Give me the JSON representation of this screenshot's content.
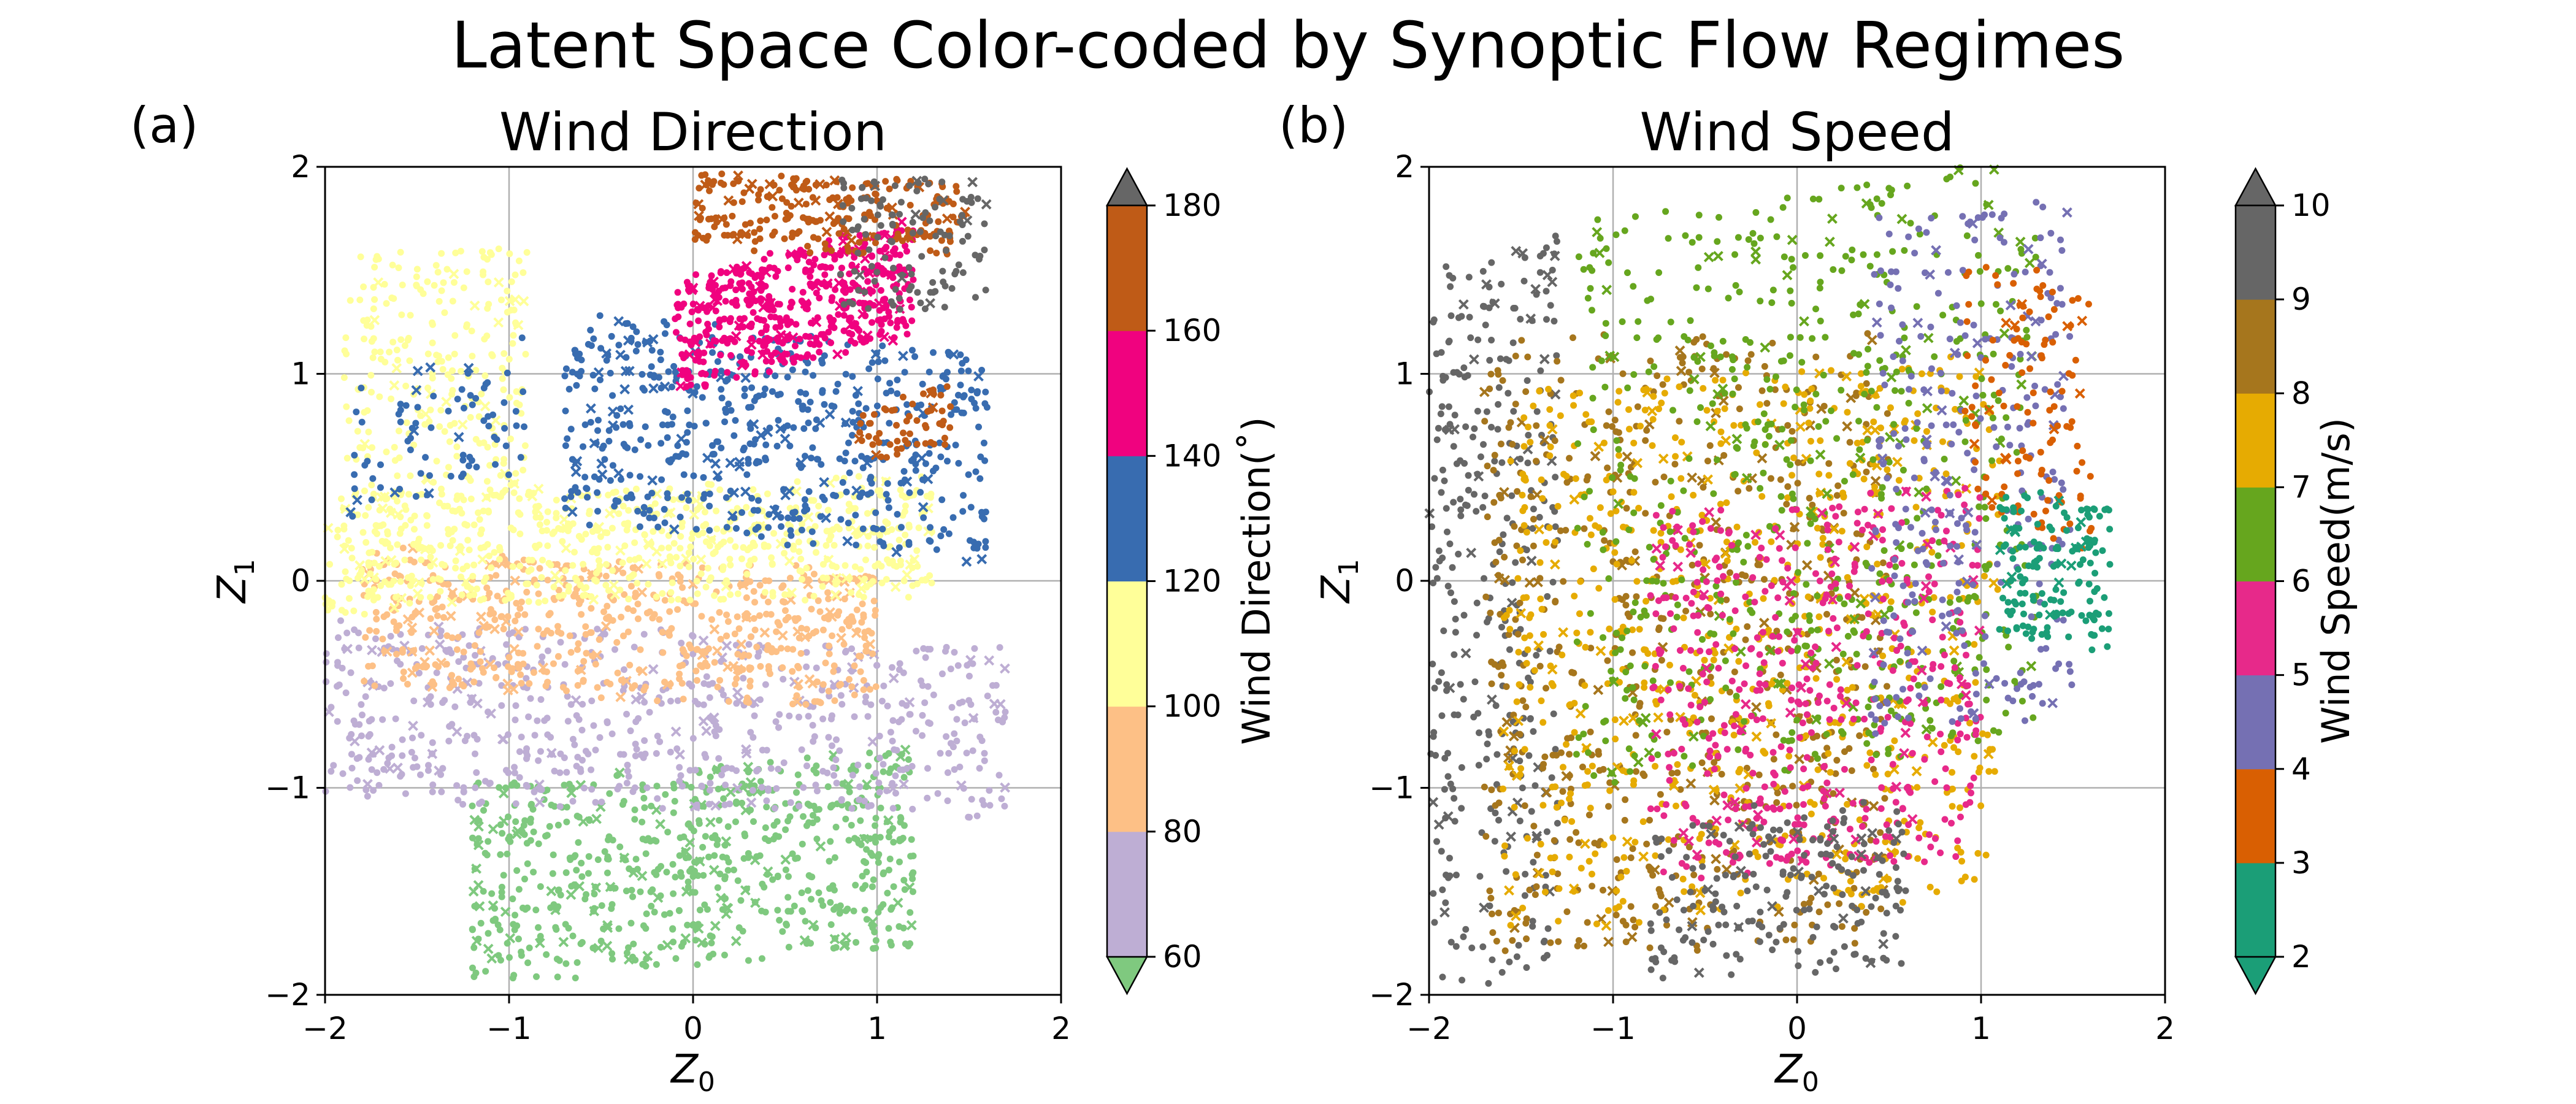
{
  "suptitle": "Latent Space Color-coded by Synoptic Flow Regimes",
  "chart_data": [
    {
      "type": "scatter",
      "panel_label": "(a)",
      "title": "Wind Direction",
      "xlabel": "Z",
      "xlabel_sub": "0",
      "ylabel": "Z",
      "ylabel_sub": "1",
      "xlim": [
        -2,
        2
      ],
      "ylim": [
        -2,
        2
      ],
      "xticks": [
        "−2",
        "−1",
        "0",
        "1",
        "2"
      ],
      "yticks": [
        "−2",
        "−1",
        "0",
        "1",
        "2"
      ],
      "grid": true,
      "colorbar": {
        "label": "Wind Direction(˚)",
        "extend": "both",
        "bounds": [
          60,
          80,
          100,
          120,
          140,
          160,
          180
        ],
        "tick_labels": [
          "60",
          "80",
          "100",
          "120",
          "140",
          "160",
          "180"
        ],
        "colors": [
          "#7fc97f",
          "#beaed4",
          "#fdc086",
          "#ffff99",
          "#386cb0",
          "#f0027f",
          "#bf5b17",
          "#666666"
        ]
      },
      "clusters": [
        {
          "class": 0,
          "x": [
            -1.2,
            1.2
          ],
          "y": [
            -1.85,
            -0.9
          ],
          "n": 700
        },
        {
          "class": 1,
          "x": [
            -2.0,
            1.7
          ],
          "y": [
            -1.1,
            -0.25
          ],
          "n": 650
        },
        {
          "class": 2,
          "x": [
            -1.8,
            1.0
          ],
          "y": [
            -0.55,
            0.1
          ],
          "n": 600
        },
        {
          "class": 3,
          "x": [
            -2.0,
            1.3
          ],
          "y": [
            -0.1,
            0.45
          ],
          "n": 700
        },
        {
          "class": 3,
          "x": [
            -1.9,
            -0.9
          ],
          "y": [
            0.4,
            1.6
          ],
          "n": 260
        },
        {
          "class": 4,
          "x": [
            -0.7,
            1.6
          ],
          "y": [
            0.2,
            1.2
          ],
          "n": 600
        },
        {
          "class": 4,
          "x": [
            -1.9,
            -0.9
          ],
          "y": [
            0.4,
            1.1
          ],
          "n": 80
        },
        {
          "class": 5,
          "x": [
            -0.1,
            1.2
          ],
          "y": [
            1.05,
            1.6
          ],
          "n": 520
        },
        {
          "class": 6,
          "x": [
            0.0,
            1.5
          ],
          "y": [
            1.6,
            1.95
          ],
          "n": 240
        },
        {
          "class": 6,
          "x": [
            0.9,
            1.4
          ],
          "y": [
            0.6,
            0.9
          ],
          "n": 60
        },
        {
          "class": 7,
          "x": [
            0.8,
            1.6
          ],
          "y": [
            1.3,
            1.95
          ],
          "n": 120
        }
      ]
    },
    {
      "type": "scatter",
      "panel_label": "(b)",
      "title": "Wind Speed",
      "xlabel": "Z",
      "xlabel_sub": "0",
      "ylabel": "Z",
      "ylabel_sub": "1",
      "xlim": [
        -2,
        2
      ],
      "ylim": [
        -2,
        2
      ],
      "xticks": [
        "−2",
        "−1",
        "0",
        "1",
        "2"
      ],
      "yticks": [
        "−2",
        "−1",
        "0",
        "1",
        "2"
      ],
      "grid": true,
      "colorbar": {
        "label": "Wind Speed(m/s)",
        "extend": "both",
        "bounds": [
          2,
          3,
          4,
          5,
          6,
          7,
          8,
          9,
          10
        ],
        "tick_labels": [
          "2",
          "3",
          "4",
          "5",
          "6",
          "7",
          "8",
          "9",
          "10"
        ],
        "colors": [
          "#1b9e77",
          "#1b9e77",
          "#d95f02",
          "#7570b3",
          "#e7298a",
          "#66a61e",
          "#e6ab02",
          "#a6761d",
          "#666666",
          "#666666"
        ]
      },
      "clusters": [
        {
          "class": 8,
          "x": [
            -2.0,
            -1.3
          ],
          "y": [
            -1.95,
            1.6
          ],
          "n": 350
        },
        {
          "class": 7,
          "x": [
            -1.7,
            0.5
          ],
          "y": [
            -1.8,
            1.2
          ],
          "n": 650
        },
        {
          "class": 6,
          "x": [
            -1.6,
            1.1
          ],
          "y": [
            -1.6,
            1.0
          ],
          "n": 750
        },
        {
          "class": 5,
          "x": [
            -1.2,
            1.3
          ],
          "y": [
            -0.9,
            1.9
          ],
          "n": 650
        },
        {
          "class": 4,
          "x": [
            -0.8,
            1.0
          ],
          "y": [
            -1.4,
            0.4
          ],
          "n": 500
        },
        {
          "class": 3,
          "x": [
            0.4,
            1.5
          ],
          "y": [
            -0.7,
            1.8
          ],
          "n": 300
        },
        {
          "class": 2,
          "x": [
            0.9,
            1.6
          ],
          "y": [
            0.2,
            1.5
          ],
          "n": 120
        },
        {
          "class": 1,
          "x": [
            1.1,
            1.7
          ],
          "y": [
            -0.3,
            0.4
          ],
          "n": 160
        },
        {
          "class": 8,
          "x": [
            -0.8,
            0.6
          ],
          "y": [
            -1.9,
            -1.1
          ],
          "n": 200
        }
      ]
    }
  ]
}
